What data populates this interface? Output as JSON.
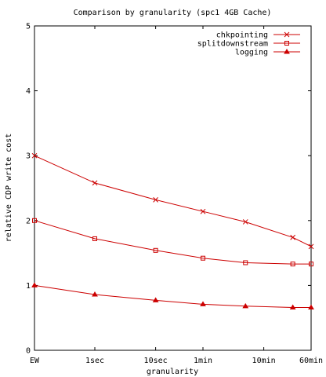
{
  "chart_data": {
    "type": "line",
    "title": "Comparison by granularity (spc1 4GB Cache)",
    "xlabel": "granularity",
    "ylabel": "relative CDP write cost",
    "x_ticks": [
      "EW",
      "1sec",
      "10sec",
      "1min",
      "10min",
      "60min"
    ],
    "y_ticks": [
      "0",
      "1",
      "2",
      "3",
      "4",
      "5"
    ],
    "ylim": [
      0,
      5
    ],
    "grid": false,
    "legend_position": "top-right",
    "series": [
      {
        "name": "chkpointing",
        "marker": "x",
        "color": "#cc0000",
        "points": [
          {
            "x": "EW",
            "y": 3.0
          },
          {
            "x": "1sec",
            "y": 2.58
          },
          {
            "x": "10sec",
            "y": 2.32
          },
          {
            "x": "1min",
            "y": 2.14
          },
          {
            "x": "5min",
            "y": 1.98
          },
          {
            "x": "30min",
            "y": 1.74
          },
          {
            "x": "60min",
            "y": 1.6
          }
        ]
      },
      {
        "name": "splitdownstream",
        "marker": "square",
        "color": "#cc0000",
        "points": [
          {
            "x": "EW",
            "y": 2.0
          },
          {
            "x": "1sec",
            "y": 1.72
          },
          {
            "x": "10sec",
            "y": 1.54
          },
          {
            "x": "1min",
            "y": 1.42
          },
          {
            "x": "5min",
            "y": 1.35
          },
          {
            "x": "30min",
            "y": 1.33
          },
          {
            "x": "60min",
            "y": 1.33
          }
        ]
      },
      {
        "name": "logging",
        "marker": "triangle",
        "color": "#cc0000",
        "points": [
          {
            "x": "EW",
            "y": 1.0
          },
          {
            "x": "1sec",
            "y": 0.86
          },
          {
            "x": "10sec",
            "y": 0.77
          },
          {
            "x": "1min",
            "y": 0.71
          },
          {
            "x": "5min",
            "y": 0.68
          },
          {
            "x": "30min",
            "y": 0.66
          },
          {
            "x": "60min",
            "y": 0.66
          }
        ]
      }
    ]
  }
}
